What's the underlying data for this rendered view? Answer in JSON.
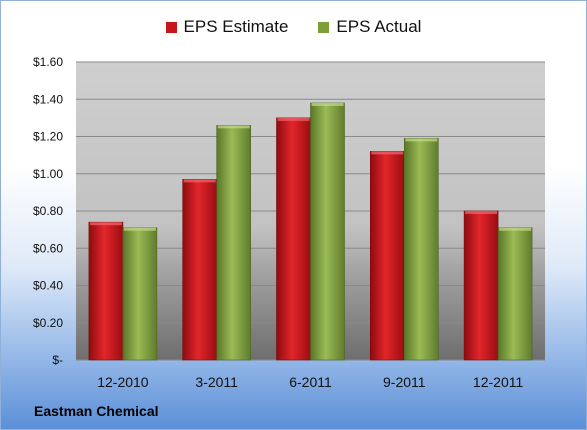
{
  "chart_data": {
    "type": "bar",
    "categories": [
      "12-2010",
      "3-2011",
      "6-2011",
      "9-2011",
      "12-2011"
    ],
    "series": [
      {
        "name": "EPS Estimate",
        "values": [
          0.74,
          0.97,
          1.3,
          1.12,
          0.8
        ],
        "color": "#c8151a"
      },
      {
        "name": "EPS Actual",
        "values": [
          0.71,
          1.26,
          1.38,
          1.19,
          0.71
        ],
        "color": "#7d9e3a"
      }
    ],
    "ylim": [
      0,
      1.6
    ],
    "yticks": [
      0,
      0.2,
      0.4,
      0.6,
      0.8,
      1.0,
      1.2,
      1.4,
      1.6
    ],
    "ytick_labels": [
      "$-",
      "$0.20",
      "$0.40",
      "$0.60",
      "$0.80",
      "$1.00",
      "$1.20",
      "$1.40",
      "$1.60"
    ],
    "grid": true,
    "legend_position": "top-center",
    "company": "Eastman Chemical"
  }
}
